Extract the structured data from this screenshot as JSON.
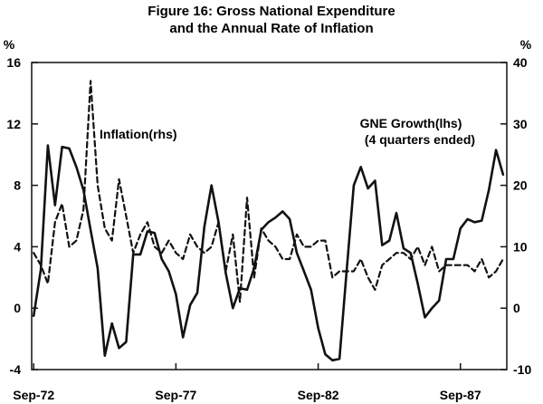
{
  "chart_data": {
    "type": "line",
    "title": [
      "Figure 16: Gross National Expenditure",
      "and the Annual Rate of Inflation"
    ],
    "ylabel_left": "%",
    "ylabel_right": "%",
    "ylim_left": [
      -4,
      16
    ],
    "ylim_right": [
      -10,
      40
    ],
    "yticks_left": [
      -4,
      0,
      4,
      8,
      12,
      16
    ],
    "yticks_right": [
      -10,
      0,
      10,
      20,
      30,
      40
    ],
    "xlim": [
      1972.6,
      1989.3
    ],
    "xticks": [
      {
        "label": "Sep-72",
        "x": 1972.67
      },
      {
        "label": "Sep-77",
        "x": 1977.67
      },
      {
        "label": "Sep-82",
        "x": 1982.67
      },
      {
        "label": "Sep-87",
        "x": 1987.67
      }
    ],
    "annotations": {
      "inflation": "Inflation(rhs)",
      "gne_line1": "GNE Growth(lhs)",
      "gne_line2": "(4 quarters ended)"
    },
    "series": [
      {
        "name": "GNE Growth (lhs)",
        "axis": "left",
        "style": "solid",
        "x": [
          1972.67,
          1972.92,
          1973.17,
          1973.42,
          1973.67,
          1973.92,
          1974.17,
          1974.42,
          1974.67,
          1974.92,
          1975.17,
          1975.42,
          1975.67,
          1975.92,
          1976.17,
          1976.42,
          1976.67,
          1976.92,
          1977.17,
          1977.42,
          1977.67,
          1977.92,
          1978.17,
          1978.42,
          1978.67,
          1978.92,
          1979.17,
          1979.42,
          1979.67,
          1979.92,
          1980.17,
          1980.42,
          1980.67,
          1980.92,
          1981.17,
          1981.42,
          1981.67,
          1981.92,
          1982.17,
          1982.42,
          1982.67,
          1982.92,
          1983.17,
          1983.42,
          1983.67,
          1983.92,
          1984.17,
          1984.42,
          1984.67,
          1984.92,
          1985.17,
          1985.42,
          1985.67,
          1985.92,
          1986.17,
          1986.42,
          1986.67,
          1986.92,
          1987.17,
          1987.42,
          1987.67,
          1987.92,
          1988.17,
          1988.42,
          1988.67,
          1988.92,
          1989.17
        ],
        "values": [
          -0.5,
          2.5,
          10.6,
          6.7,
          10.5,
          10.4,
          9.2,
          7.7,
          5.1,
          2.6,
          -3.1,
          -1.0,
          -2.6,
          -2.2,
          3.5,
          3.5,
          5.0,
          4.9,
          3.2,
          2.4,
          0.9,
          -1.9,
          0.2,
          1.0,
          5.3,
          8.0,
          5.6,
          2.3,
          0.0,
          1.3,
          1.2,
          2.6,
          5.1,
          5.6,
          5.9,
          6.3,
          5.8,
          3.6,
          2.4,
          1.2,
          -1.3,
          -3.0,
          -3.4,
          -3.3,
          2.4,
          8.0,
          9.2,
          7.8,
          8.3,
          4.1,
          4.4,
          6.2,
          3.9,
          3.6,
          1.6,
          -0.6,
          0.0,
          0.5,
          3.2,
          3.2,
          5.2,
          5.8,
          5.6,
          5.7,
          7.7,
          10.3,
          8.7
        ]
      },
      {
        "name": "Inflation (rhs)",
        "axis": "right",
        "style": "dashed",
        "x": [
          1972.67,
          1972.92,
          1973.17,
          1973.42,
          1973.67,
          1973.92,
          1974.17,
          1974.42,
          1974.67,
          1974.92,
          1975.17,
          1975.42,
          1975.67,
          1975.92,
          1976.17,
          1976.42,
          1976.67,
          1976.92,
          1977.17,
          1977.42,
          1977.67,
          1977.92,
          1978.17,
          1978.42,
          1978.67,
          1978.92,
          1979.17,
          1979.42,
          1979.67,
          1979.92,
          1980.17,
          1980.42,
          1980.67,
          1980.92,
          1981.17,
          1981.42,
          1981.67,
          1981.92,
          1982.17,
          1982.42,
          1982.67,
          1982.92,
          1983.17,
          1983.42,
          1983.67,
          1983.92,
          1984.17,
          1984.42,
          1984.67,
          1984.92,
          1985.17,
          1985.42,
          1985.67,
          1985.92,
          1986.17,
          1986.42,
          1986.67,
          1986.92,
          1987.17,
          1987.42,
          1987.67,
          1987.92,
          1988.17,
          1988.42,
          1988.67,
          1988.92,
          1989.17
        ],
        "values": [
          9,
          7,
          4,
          14,
          17,
          10,
          11,
          16,
          37,
          20,
          13,
          11,
          21,
          15,
          9,
          12,
          14,
          10,
          9,
          11,
          9,
          8,
          12,
          10,
          9,
          10,
          14,
          6,
          12,
          1,
          18,
          5,
          13,
          11,
          10,
          8,
          8,
          12,
          10,
          10,
          11,
          11,
          5,
          6,
          6,
          6,
          8,
          5,
          3,
          7,
          8,
          9,
          9,
          8,
          10,
          7,
          10,
          6,
          7,
          7,
          7,
          7,
          6,
          8,
          5,
          6,
          8
        ]
      }
    ]
  }
}
